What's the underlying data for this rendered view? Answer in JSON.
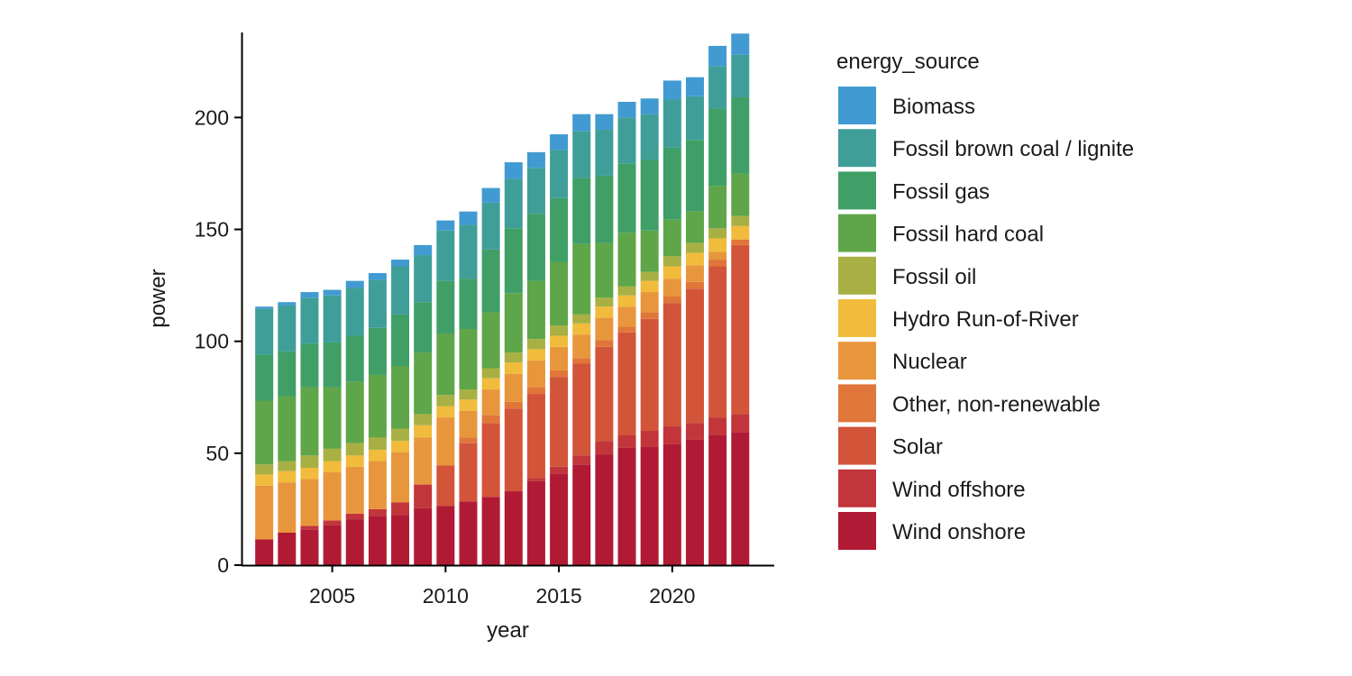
{
  "chart_data": {
    "type": "bar",
    "stacked": true,
    "xlabel": "year",
    "ylabel": "power",
    "xlim": [
      2001,
      2024.5
    ],
    "ylim": [
      0,
      238
    ],
    "x_ticks": [
      2005,
      2010,
      2015,
      2020
    ],
    "y_ticks": [
      0,
      50,
      100,
      150,
      200
    ],
    "grid": false,
    "legend": {
      "title": "energy_source",
      "placement": "right"
    },
    "categories": [
      2002,
      2003,
      2004,
      2005,
      2006,
      2007,
      2008,
      2009,
      2010,
      2011,
      2012,
      2013,
      2014,
      2015,
      2016,
      2017,
      2018,
      2019,
      2020,
      2021,
      2022,
      2023
    ],
    "series": [
      {
        "name": "Wind onshore",
        "color": "#b11a35",
        "values": [
          11.5,
          14.5,
          16,
          18,
          20.5,
          22,
          22.5,
          25.5,
          26.5,
          28.5,
          30.5,
          33,
          37.5,
          41,
          45,
          49.5,
          52.5,
          53,
          54,
          56,
          58,
          59.5
        ]
      },
      {
        "name": "Wind offshore",
        "color": "#c2353a",
        "values": [
          0,
          0,
          1.5,
          2,
          2.5,
          3,
          5.5,
          10.5,
          0,
          0,
          0,
          0,
          1.5,
          3,
          4,
          6,
          5.5,
          7,
          8,
          7.5,
          8,
          8
        ]
      },
      {
        "name": "Solar",
        "color": "#d2553a",
        "values": [
          0,
          0,
          0,
          0,
          0,
          0,
          0,
          0,
          18,
          26,
          33,
          37,
          37.5,
          40,
          41,
          42,
          46,
          50,
          55,
          60,
          67.5,
          75.5
        ]
      },
      {
        "name": "Other, non-renewable",
        "color": "#e0763a",
        "values": [
          0,
          0,
          0,
          0,
          0,
          0,
          0,
          0,
          0,
          2.5,
          3.5,
          3,
          3,
          3,
          2.5,
          3,
          2.5,
          3,
          3,
          3,
          3,
          2.5
        ]
      },
      {
        "name": "Nuclear",
        "color": "#e8963c",
        "values": [
          24,
          22.5,
          21,
          21.5,
          21,
          21.5,
          22.5,
          21,
          21.5,
          12,
          11.5,
          12.5,
          12,
          10.5,
          10.5,
          10,
          9,
          9,
          8,
          7.5,
          3.5,
          0
        ]
      },
      {
        "name": "Hydro Run-of-River",
        "color": "#f1bb3b",
        "values": [
          5,
          5,
          5,
          5,
          5,
          5,
          5,
          5.5,
          5,
          5,
          5,
          5,
          5,
          5,
          5,
          5,
          5,
          5,
          5.5,
          5.5,
          6,
          6
        ]
      },
      {
        "name": "Fossil oil",
        "color": "#a8b043",
        "values": [
          4.5,
          4.5,
          5.5,
          5.5,
          5.5,
          5.5,
          5.5,
          5,
          5,
          4.5,
          4.5,
          4.5,
          4.5,
          4.5,
          4,
          4,
          4,
          4,
          4.5,
          4.5,
          4.5,
          4.5
        ]
      },
      {
        "name": "Fossil hard coal",
        "color": "#5fa549",
        "values": [
          28.5,
          29,
          30.5,
          27.5,
          27.5,
          28,
          28,
          27.5,
          27.5,
          27,
          25,
          26.5,
          26,
          28.5,
          31.5,
          24.5,
          24,
          18.5,
          16.5,
          14,
          19,
          19
        ]
      },
      {
        "name": "Fossil gas",
        "color": "#3f9f67",
        "values": [
          20.5,
          20,
          19.5,
          20,
          20.5,
          21,
          23,
          22.5,
          23.5,
          22.5,
          28,
          29,
          30,
          28.5,
          29.5,
          30,
          31,
          31.5,
          32,
          32,
          34.5,
          34
        ]
      },
      {
        "name": "Fossil brown coal / lignite",
        "color": "#409e99",
        "values": [
          20.5,
          20.5,
          20.5,
          21,
          21.5,
          21.5,
          21.5,
          21,
          22.5,
          24,
          21,
          22,
          20.5,
          21.5,
          21,
          20.5,
          20.5,
          20.5,
          21.5,
          19.5,
          19,
          19
        ]
      },
      {
        "name": "Biomass",
        "color": "#429ad2",
        "values": [
          1,
          1.5,
          2.5,
          2.5,
          3,
          3,
          3,
          4.5,
          4.5,
          6,
          6.5,
          7.5,
          7,
          7,
          7.5,
          7,
          7,
          7,
          8.5,
          8.5,
          9,
          9.5
        ]
      }
    ]
  }
}
